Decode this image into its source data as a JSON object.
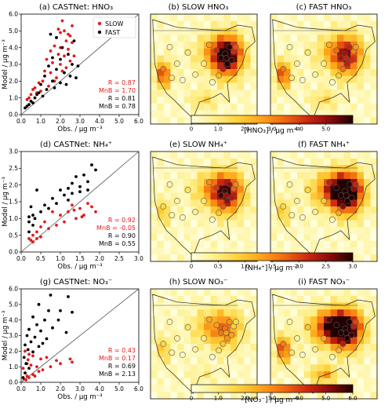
{
  "chart_data": [
    {
      "type": "scatter",
      "title": "(a) CASTNet: HNO₃",
      "xlabel": "Obs. / μg m⁻³",
      "ylabel": "Model / μg m⁻³",
      "xlim": [
        0,
        6
      ],
      "ylim": [
        0,
        6
      ],
      "xticks": [
        "0.0",
        "1.0",
        "2.0",
        "3.0",
        "4.0",
        "5.0",
        "6.0"
      ],
      "yticks": [
        "0.0",
        "1.0",
        "2.0",
        "3.0",
        "4.0",
        "5.0",
        "6.0"
      ],
      "grid": false,
      "identity_line": true,
      "legend_position": "top-right",
      "series": [
        {
          "name": "SLOW",
          "color": "#e31a1c",
          "points": [
            [
              1.9,
              5.1
            ],
            [
              2.0,
              4.9
            ],
            [
              2.1,
              5.6
            ],
            [
              2.2,
              5.0
            ],
            [
              2.4,
              4.8
            ],
            [
              2.5,
              4.7
            ],
            [
              1.8,
              4.6
            ],
            [
              2.3,
              4.4
            ],
            [
              2.6,
              4.3
            ],
            [
              1.7,
              4.1
            ],
            [
              2.0,
              4.0
            ],
            [
              2.4,
              3.9
            ],
            [
              1.5,
              3.8
            ],
            [
              1.9,
              3.6
            ],
            [
              2.2,
              3.5
            ],
            [
              2.7,
              3.5
            ],
            [
              1.3,
              3.3
            ],
            [
              1.6,
              3.1
            ],
            [
              2.0,
              3.0
            ],
            [
              2.3,
              2.8
            ],
            [
              1.2,
              2.6
            ],
            [
              1.5,
              2.5
            ],
            [
              1.8,
              2.2
            ],
            [
              1.1,
              2.0
            ],
            [
              2.1,
              2.6
            ],
            [
              0.9,
              1.9
            ],
            [
              1.4,
              1.7
            ],
            [
              0.7,
              1.6
            ],
            [
              0.6,
              1.5
            ],
            [
              1.0,
              1.4
            ],
            [
              0.5,
              1.2
            ],
            [
              0.8,
              1.3
            ],
            [
              0.4,
              1.0
            ],
            [
              0.3,
              0.9
            ],
            [
              1.7,
              2.0
            ],
            [
              2.5,
              3.2
            ],
            [
              2.6,
              5.3
            ]
          ]
        },
        {
          "name": "FAST",
          "color": "#000000",
          "points": [
            [
              1.5,
              4.8
            ],
            [
              1.8,
              4.6
            ],
            [
              2.1,
              4.0
            ],
            [
              2.7,
              4.4
            ],
            [
              2.4,
              3.6
            ],
            [
              1.6,
              3.4
            ],
            [
              2.0,
              3.3
            ],
            [
              2.6,
              3.0
            ],
            [
              2.9,
              2.9
            ],
            [
              1.4,
              2.9
            ],
            [
              1.8,
              2.7
            ],
            [
              2.2,
              2.5
            ],
            [
              2.5,
              2.3
            ],
            [
              1.2,
              2.3
            ],
            [
              1.6,
              2.0
            ],
            [
              2.0,
              1.9
            ],
            [
              2.3,
              1.8
            ],
            [
              1.0,
              1.8
            ],
            [
              1.3,
              1.5
            ],
            [
              0.9,
              1.3
            ],
            [
              1.1,
              1.1
            ],
            [
              0.7,
              1.0
            ],
            [
              0.5,
              0.8
            ],
            [
              0.4,
              0.6
            ],
            [
              0.3,
              0.5
            ],
            [
              0.6,
              0.7
            ],
            [
              1.7,
              1.6
            ],
            [
              2.8,
              2.2
            ],
            [
              0.8,
              1.2
            ],
            [
              0.2,
              0.4
            ]
          ]
        }
      ],
      "annotations": [
        {
          "text": "R = 0.87",
          "color": "#e31a1c"
        },
        {
          "text": "MnB = 1.70",
          "color": "#e31a1c"
        },
        {
          "text": "R = 0.81",
          "color": "#000000"
        },
        {
          "text": "MnB = 0.78",
          "color": "#000000"
        }
      ]
    },
    {
      "type": "scatter",
      "title": "(d) CASTNet: NH₄⁺",
      "xlabel": "Obs. / μg m⁻³",
      "ylabel": "Model / μg m⁻³",
      "xlim": [
        0,
        3
      ],
      "ylim": [
        0,
        3
      ],
      "xticks": [
        "0.0",
        "0.5",
        "1.0",
        "1.5",
        "2.0",
        "2.5",
        "3.0"
      ],
      "yticks": [
        "0.0",
        "0.5",
        "1.0",
        "1.5",
        "2.0",
        "2.5",
        "3.0"
      ],
      "grid": false,
      "identity_line": true,
      "series": [
        {
          "name": "SLOW",
          "color": "#e31a1c",
          "points": [
            [
              1.3,
              1.4
            ],
            [
              1.5,
              1.3
            ],
            [
              1.8,
              1.35
            ],
            [
              1.9,
              1.2
            ],
            [
              1.2,
              1.2
            ],
            [
              1.6,
              1.1
            ],
            [
              1.4,
              1.0
            ],
            [
              1.0,
              1.1
            ],
            [
              0.8,
              1.2
            ],
            [
              1.1,
              0.9
            ],
            [
              0.9,
              0.8
            ],
            [
              0.6,
              0.9
            ],
            [
              0.7,
              0.7
            ],
            [
              0.5,
              0.75
            ],
            [
              0.4,
              0.6
            ],
            [
              0.3,
              0.5
            ],
            [
              0.2,
              0.4
            ],
            [
              0.25,
              0.35
            ],
            [
              0.3,
              0.3
            ],
            [
              1.7,
              1.45
            ],
            [
              1.35,
              1.25
            ],
            [
              1.55,
              1.05
            ],
            [
              0.5,
              0.45
            ],
            [
              0.4,
              0.4
            ]
          ]
        },
        {
          "name": "FAST",
          "color": "#000000",
          "points": [
            [
              1.8,
              2.6
            ],
            [
              1.9,
              2.45
            ],
            [
              1.6,
              2.3
            ],
            [
              1.4,
              2.25
            ],
            [
              1.7,
              2.1
            ],
            [
              1.3,
              2.05
            ],
            [
              1.5,
              1.95
            ],
            [
              1.2,
              1.9
            ],
            [
              1.0,
              1.85
            ],
            [
              0.4,
              1.85
            ],
            [
              1.1,
              1.7
            ],
            [
              1.3,
              1.75
            ],
            [
              0.8,
              1.6
            ],
            [
              0.9,
              1.45
            ],
            [
              1.2,
              1.55
            ],
            [
              0.6,
              1.4
            ],
            [
              0.7,
              1.3
            ],
            [
              0.5,
              1.2
            ],
            [
              0.3,
              1.1
            ],
            [
              0.2,
              0.9
            ],
            [
              0.3,
              0.8
            ],
            [
              0.2,
              0.6
            ],
            [
              0.25,
              1.35
            ],
            [
              0.35,
              1.0
            ],
            [
              1.5,
              1.8
            ],
            [
              1.7,
              1.85
            ],
            [
              0.2,
              1.05
            ]
          ]
        }
      ],
      "annotations": [
        {
          "text": "R = 0.92",
          "color": "#e31a1c"
        },
        {
          "text": "MnB = -0.05",
          "color": "#e31a1c"
        },
        {
          "text": "R = 0.90",
          "color": "#000000"
        },
        {
          "text": "MnB = 0.55",
          "color": "#000000"
        }
      ]
    },
    {
      "type": "scatter",
      "title": "(g) CASTNet: NO₃⁻",
      "xlabel": "Obs. / μg m⁻³",
      "ylabel": "Model / μg m⁻³",
      "xlim": [
        0,
        6
      ],
      "ylim": [
        0,
        6
      ],
      "xticks": [
        "0.0",
        "1.0",
        "2.0",
        "3.0",
        "4.0",
        "5.0",
        "6.0"
      ],
      "yticks": [
        "0.0",
        "1.0",
        "2.0",
        "3.0",
        "4.0",
        "5.0",
        "6.0"
      ],
      "grid": false,
      "identity_line": true,
      "series": [
        {
          "name": "SLOW",
          "color": "#e31a1c",
          "points": [
            [
              0.2,
              2.0
            ],
            [
              0.4,
              1.8
            ],
            [
              0.6,
              1.7
            ],
            [
              1.0,
              1.5
            ],
            [
              1.3,
              1.6
            ],
            [
              2.5,
              1.5
            ],
            [
              2.6,
              1.3
            ],
            [
              1.8,
              1.4
            ],
            [
              0.3,
              1.2
            ],
            [
              0.5,
              1.1
            ],
            [
              0.8,
              1.0
            ],
            [
              1.5,
              1.0
            ],
            [
              0.1,
              0.9
            ],
            [
              0.2,
              0.6
            ],
            [
              0.3,
              0.4
            ],
            [
              0.4,
              0.3
            ],
            [
              0.6,
              0.5
            ],
            [
              0.9,
              0.7
            ],
            [
              1.1,
              0.8
            ],
            [
              0.15,
              0.2
            ],
            [
              0.25,
              0.15
            ],
            [
              0.7,
              0.4
            ],
            [
              0.35,
              1.45
            ],
            [
              2.0,
              1.2
            ]
          ]
        },
        {
          "name": "FAST",
          "color": "#000000",
          "points": [
            [
              1.5,
              5.6
            ],
            [
              2.4,
              5.5
            ],
            [
              0.9,
              5.0
            ],
            [
              1.4,
              4.6
            ],
            [
              2.6,
              4.5
            ],
            [
              0.6,
              4.2
            ],
            [
              1.2,
              4.0
            ],
            [
              1.9,
              4.0
            ],
            [
              0.8,
              3.7
            ],
            [
              1.6,
              3.5
            ],
            [
              0.4,
              3.4
            ],
            [
              1.0,
              3.3
            ],
            [
              2.3,
              3.2
            ],
            [
              0.3,
              3.0
            ],
            [
              0.7,
              2.9
            ],
            [
              1.3,
              2.8
            ],
            [
              0.5,
              2.6
            ],
            [
              0.2,
              2.4
            ],
            [
              0.9,
              2.3
            ],
            [
              0.35,
              2.1
            ],
            [
              0.6,
              1.95
            ],
            [
              0.15,
              1.6
            ],
            [
              0.25,
              1.2
            ],
            [
              0.4,
              0.9
            ],
            [
              0.2,
              0.6
            ],
            [
              0.1,
              0.3
            ],
            [
              1.1,
              2.5
            ],
            [
              2.0,
              4.6
            ]
          ]
        }
      ],
      "annotations": [
        {
          "text": "R = 0.43",
          "color": "#e31a1c"
        },
        {
          "text": "MnB = 0.17",
          "color": "#e31a1c"
        },
        {
          "text": "R = 0.69",
          "color": "#000000"
        },
        {
          "text": "MnB = 2.13",
          "color": "#000000"
        }
      ]
    }
  ],
  "maps": [
    {
      "title": "(b) SLOW HNO₃"
    },
    {
      "title": "(c) FAST HNO₃"
    },
    {
      "title": "(e) SLOW NH₄⁺"
    },
    {
      "title": "(f) FAST NH₄⁺"
    },
    {
      "title": "(h) SLOW NO₃⁻"
    },
    {
      "title": "(i) FAST NO₃⁻"
    }
  ],
  "colorbars": [
    {
      "label": "[HNO₃] / μg m⁻³",
      "ticks": [
        "0",
        "1.0",
        "2.0",
        "3.0",
        "4.0",
        "5.0"
      ],
      "max": 6
    },
    {
      "label": "[NH₄⁺] / μg m⁻³",
      "ticks": [
        "0",
        "0.5",
        "1.0",
        "1.5",
        "2.0",
        "2.5",
        "3.0"
      ],
      "max": 3
    },
    {
      "label": "[NO₃⁻] / μg m⁻³",
      "ticks": [
        "0",
        "1.0",
        "2.0",
        "3.0",
        "4.0",
        "5.0",
        "6.0"
      ],
      "max": 6
    }
  ],
  "colormap": [
    "#ffffe0",
    "#ffef8a",
    "#ffd23a",
    "#ffa51a",
    "#f26a0f",
    "#cf2a10",
    "#8c0a0a",
    "#200000"
  ]
}
